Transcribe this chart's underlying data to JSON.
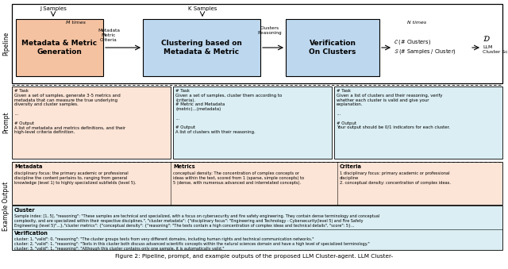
{
  "title": "Figure 2: Pipeline, prompt, and example outputs of the proposed LLM Cluster-agent. LLM Cluster-",
  "bg_color": "#ffffff",
  "pipeline_box1_color": "#f4c2a1",
  "pipeline_box2_color": "#bdd7ee",
  "pipeline_box3_color": "#bdd7ee",
  "pipeline_box1_text": "Metadata & Metric\nGeneration",
  "pipeline_box2_text": "Clustering based on\nMetadata & Metric",
  "pipeline_box3_text": "Verification\nOn Clusters",
  "prompt_box1_color": "#fce4d6",
  "prompt_box2_color": "#daeef3",
  "prompt_box3_color": "#daeef3",
  "prompt_box1_text": "# Task\nGiven a set of samples, generate 3-5 metrics and\nmetadata that can measure the true underlying\ndiversity and cluster samples.\n\n...\n\n# Output\nA list of metadata and metrics definitions, and their\nhigh-level criteria definition.",
  "prompt_box2_text": "# Task\nGiven a set of samples, cluster them according to\n(criteria).\n# Metric and Metadata\n(metric)...(metadata)\n\n...\n\n# Output\nA list of clusters with their reasoning.",
  "prompt_box3_text": "# Task\nGiven a list of clusters and their reasoning, verify\nwhether each cluster is valid and give your\nexplanation.\n\n...\n\n# Output\nYour output should be 0/1 indicators for each cluster.",
  "example_top_color": "#fce4d6",
  "example_bottom_color": "#daeef3",
  "metadata_text": "disciplinary focus: the primary academic or professional\ndiscipline the content pertains to, ranging from general\nknowledge (level 1) to highly specialized subfields (level 5).",
  "metrics_text": "conceptual density: The concentration of complex concepts or\nideas within the text, scored from 1 (sparse, simple concepts) to\n5 (dense, with numerous advanced and interrelated concepts).",
  "criteria_text": "1 disciplinary focus: primary academic or professional\ndiscipline\n2. conceptual density: concentration of complex ideas.",
  "cluster_text": "Sample index: [1, 5], \"reasoning\": \"These samples are technical and specialized, with a focus on cybersecurity and fire safety engineering. They contain dense terminology and conceptual\ncomplexity, and are specialized within their respective disciplines.\", \"cluster metadata\": {\"disciplinary focus\": \"Engineering and Technology - Cybersecurity(level 5) and Fire Safety\nEngineering (level 5)\"...},\"cluster metrics\": {\"conceptual density\": {\"reasoning\": \"The texts contain a high concentration of complex ideas and technical details\", \"score\": 5}...",
  "verification_text": "cluster: 1, \"valid\": 0, \"reasoning\": \"The cluster groups texts from very different domains, including human rights and technical communication networks.\"\ncluster: 2, \"valid\": 1, \"reasoning\": \"Texts in this cluster both discuss advanced scientific concepts within the natural sciences domain and have a high level of specialized terminology.\"\ncluster: 3, \"valid\": 1, \"reasoning\": \"Although this cluster contains only one sample, it is automatically valid.\""
}
